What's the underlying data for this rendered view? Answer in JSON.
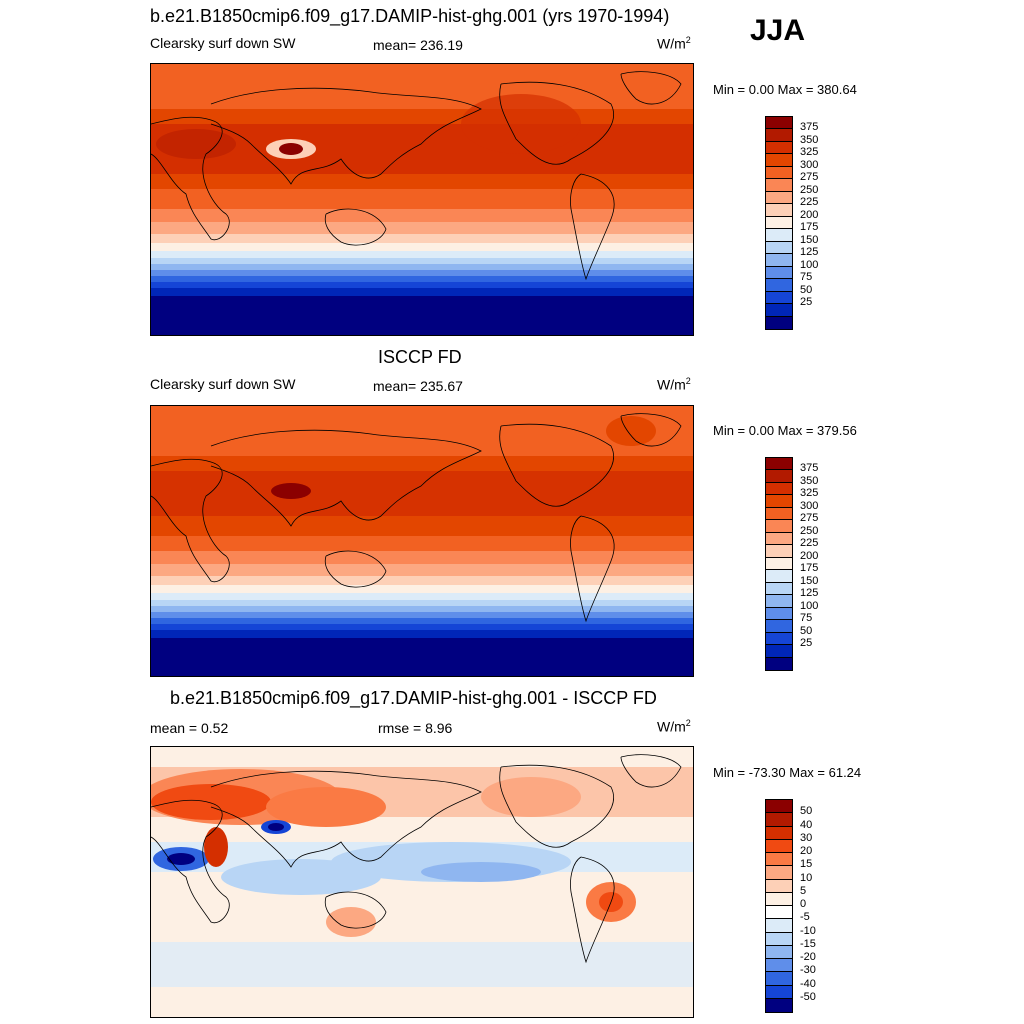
{
  "season": "JJA",
  "panels": [
    {
      "title": "b.e21.B1850cmip6.f09_g17.DAMIP-hist-ghg.001 (yrs 1970-1994)",
      "left_label": "Clearsky surf down SW",
      "center_label": "mean= 236.19",
      "unit": "W/m",
      "unit_sup": "2",
      "minmax": "Min =   0.00 Max = 380.64",
      "colorbar": {
        "labels": [
          "375",
          "350",
          "325",
          "300",
          "275",
          "250",
          "225",
          "200",
          "175",
          "150",
          "125",
          "100",
          "75",
          "50",
          "25"
        ],
        "colors": [
          "#8b0000",
          "#b21a00",
          "#d42f00",
          "#e34600",
          "#f26122",
          "#fa8655",
          "#fca882",
          "#fdd0b7",
          "#fdf0e4",
          "#dcebf8",
          "#b8d5f5",
          "#8fb6f0",
          "#5f8eea",
          "#3066e0",
          "#1545d6",
          "#0026b8",
          "#000080"
        ]
      }
    },
    {
      "title": "ISCCP FD",
      "left_label": "Clearsky surf down SW",
      "center_label": "mean= 235.67",
      "unit": "W/m",
      "unit_sup": "2",
      "minmax": "Min =   0.00 Max = 379.56",
      "colorbar": {
        "labels": [
          "375",
          "350",
          "325",
          "300",
          "275",
          "250",
          "225",
          "200",
          "175",
          "150",
          "125",
          "100",
          "75",
          "50",
          "25"
        ],
        "colors": [
          "#8b0000",
          "#b21a00",
          "#d42f00",
          "#e34600",
          "#f26122",
          "#fa8655",
          "#fca882",
          "#fdd0b7",
          "#fdf0e4",
          "#dcebf8",
          "#b8d5f5",
          "#8fb6f0",
          "#5f8eea",
          "#3066e0",
          "#1545d6",
          "#0026b8",
          "#000080"
        ]
      }
    },
    {
      "title": "b.e21.B1850cmip6.f09_g17.DAMIP-hist-ghg.001 - ISCCP FD",
      "left_label": "mean =   0.52",
      "center_label": "rmse =   8.96",
      "unit": "W/m",
      "unit_sup": "2",
      "minmax": "Min = -73.30 Max =  61.24",
      "colorbar": {
        "labels": [
          "50",
          "40",
          "30",
          "20",
          "15",
          "10",
          "5",
          "0",
          "-5",
          "-10",
          "-15",
          "-20",
          "-30",
          "-40",
          "-50"
        ],
        "colors": [
          "#8b0000",
          "#b21a00",
          "#d42f00",
          "#f04a12",
          "#fa7a44",
          "#fca882",
          "#fdd0b7",
          "#fdf0e4",
          "#ffffff",
          "#dcebf8",
          "#b8d5f5",
          "#8fb6f0",
          "#5f8eea",
          "#3066e0",
          "#1545d6",
          "#000080"
        ]
      }
    }
  ]
}
